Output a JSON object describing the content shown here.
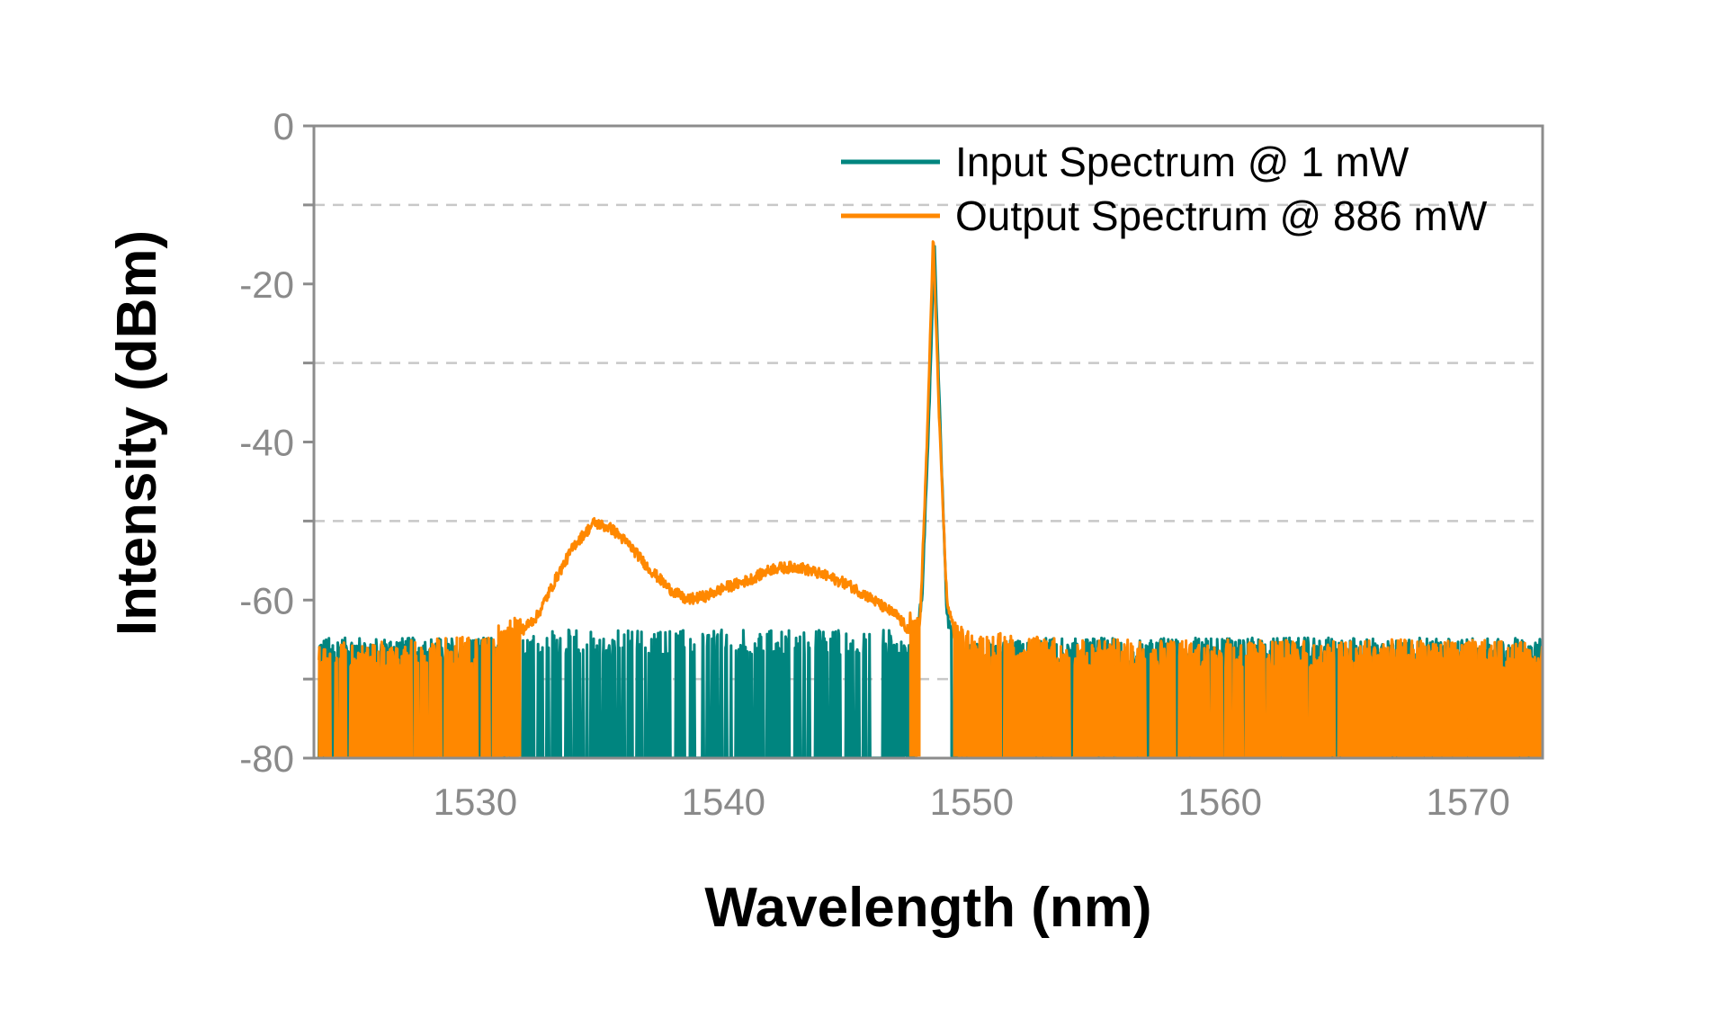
{
  "chart_data": {
    "type": "line",
    "title": "",
    "xlabel": "Wavelength (nm)",
    "ylabel": "Intensity (dBm)",
    "xlim": [
      1523.5,
      1573
    ],
    "ylim": [
      -80,
      0
    ],
    "x_ticks": [
      1530,
      1540,
      1550,
      1560,
      1570
    ],
    "x_tick_labels": [
      "1530",
      "1540",
      "1550",
      "1560",
      "1570"
    ],
    "y_ticks": [
      0,
      -20,
      -40,
      -60,
      -80
    ],
    "y_tick_labels": [
      "0",
      "-20",
      "-40",
      "-60",
      "-80"
    ],
    "grid_y": [
      -10,
      -30,
      -50,
      -70
    ],
    "grid": "horizontal dashed",
    "legend_position": "top-right",
    "series": [
      {
        "name": "Input Spectrum @ 1 mW",
        "color": "#00857f",
        "style": "noise-filled",
        "points": [
          [
            1523.7,
            -67
          ],
          [
            1530,
            -67
          ],
          [
            1531,
            -67
          ],
          [
            1532,
            -66
          ],
          [
            1535,
            -66
          ],
          [
            1540,
            -66
          ],
          [
            1545,
            -66
          ],
          [
            1546.9,
            -66
          ],
          [
            1547.5,
            -68
          ],
          [
            1548.0,
            -60
          ],
          [
            1548.3,
            -35
          ],
          [
            1548.5,
            -15
          ],
          [
            1548.7,
            -35
          ],
          [
            1549.0,
            -62
          ],
          [
            1549.5,
            -68
          ],
          [
            1552,
            -67
          ],
          [
            1560,
            -67
          ],
          [
            1570,
            -67
          ],
          [
            1573,
            -67
          ]
        ]
      },
      {
        "name": "Output Spectrum @ 886 mW",
        "color": "#ff8800",
        "style": "noise-filled",
        "points": [
          [
            1523.7,
            -68
          ],
          [
            1527,
            -67.5
          ],
          [
            1530,
            -67
          ],
          [
            1531.5,
            -65
          ],
          [
            1532.5,
            -62
          ],
          [
            1533.3,
            -57
          ],
          [
            1534,
            -53
          ],
          [
            1534.8,
            -50.2
          ],
          [
            1535.5,
            -51
          ],
          [
            1536.2,
            -53
          ],
          [
            1537,
            -56
          ],
          [
            1537.8,
            -58.5
          ],
          [
            1538.5,
            -60
          ],
          [
            1539.3,
            -59.5
          ],
          [
            1540,
            -58.5
          ],
          [
            1541,
            -57.5
          ],
          [
            1542,
            -56
          ],
          [
            1543,
            -55.8
          ],
          [
            1544,
            -56.8
          ],
          [
            1545,
            -58
          ],
          [
            1545.8,
            -59.5
          ],
          [
            1546.5,
            -61
          ],
          [
            1547,
            -62
          ],
          [
            1547.5,
            -64
          ],
          [
            1547.9,
            -64.5
          ],
          [
            1548.2,
            -40
          ],
          [
            1548.45,
            -14
          ],
          [
            1548.7,
            -38
          ],
          [
            1549.0,
            -60
          ],
          [
            1549.4,
            -65.5
          ],
          [
            1550,
            -66.5
          ],
          [
            1553,
            -67
          ],
          [
            1556,
            -67.5
          ],
          [
            1560,
            -67.5
          ],
          [
            1565,
            -67.5
          ],
          [
            1570,
            -67.5
          ],
          [
            1573,
            -68
          ]
        ]
      }
    ]
  }
}
